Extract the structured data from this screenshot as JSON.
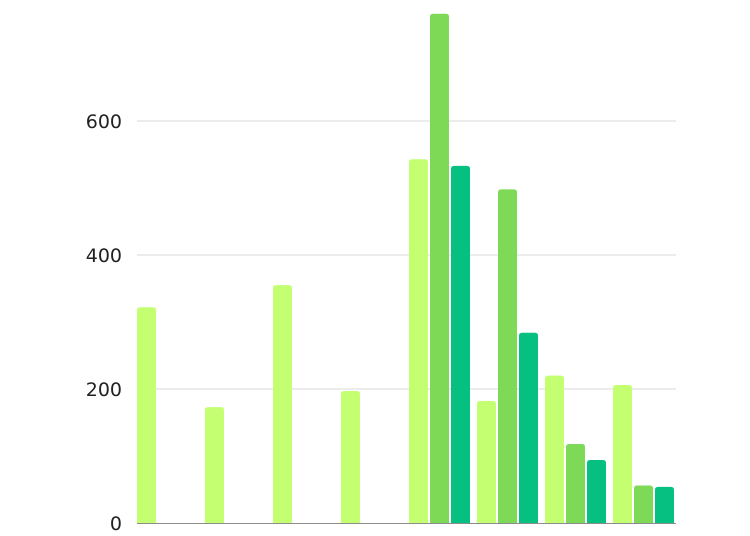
{
  "chart_data": {
    "type": "bar",
    "title": "",
    "xlabel": "",
    "ylabel": "",
    "ylim": [
      0,
      800
    ],
    "yticks": [
      "0",
      "200",
      "400",
      "600"
    ],
    "grid": true,
    "legend": "none",
    "categories": [
      "",
      "",
      "",
      "",
      "",
      "",
      "",
      ""
    ],
    "series": [
      {
        "color": "#c4ff72",
        "values": [
          322,
          173,
          355,
          197,
          543,
          182,
          220,
          206
        ]
      },
      {
        "color": "#7ed957",
        "values": [
          null,
          null,
          null,
          null,
          760,
          498,
          118,
          56
        ]
      },
      {
        "color": "#05c080",
        "values": [
          null,
          null,
          null,
          null,
          533,
          284,
          94,
          54
        ]
      }
    ]
  }
}
